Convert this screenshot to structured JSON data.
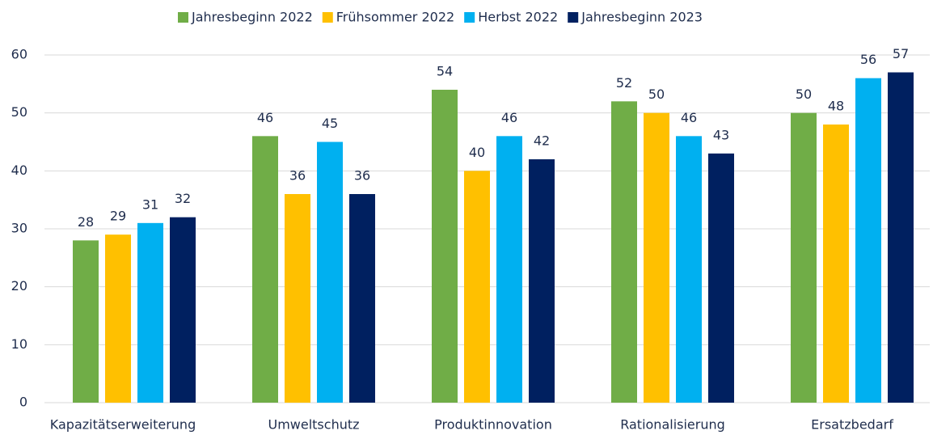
{
  "chart_data": {
    "type": "bar",
    "categories": [
      "Kapazitätserweiterung",
      "Umweltschutz",
      "Produktinnovation",
      "Rationalisierung",
      "Ersatzbedarf"
    ],
    "series": [
      {
        "name": "Jahresbeginn 2022",
        "color": "#70ad47",
        "values": [
          28,
          46,
          54,
          52,
          50
        ]
      },
      {
        "name": "Frühsommer 2022",
        "color": "#ffc000",
        "values": [
          29,
          36,
          40,
          50,
          48
        ]
      },
      {
        "name": "Herbst 2022",
        "color": "#00b0f0",
        "values": [
          31,
          45,
          46,
          46,
          56
        ]
      },
      {
        "name": "Jahresbeginn 2023",
        "color": "#002060",
        "values": [
          32,
          36,
          42,
          43,
          57
        ]
      }
    ],
    "ylim": [
      0,
      60
    ],
    "yticks": [
      0,
      10,
      20,
      30,
      40,
      50,
      60
    ],
    "grid": true,
    "legend": "top"
  }
}
